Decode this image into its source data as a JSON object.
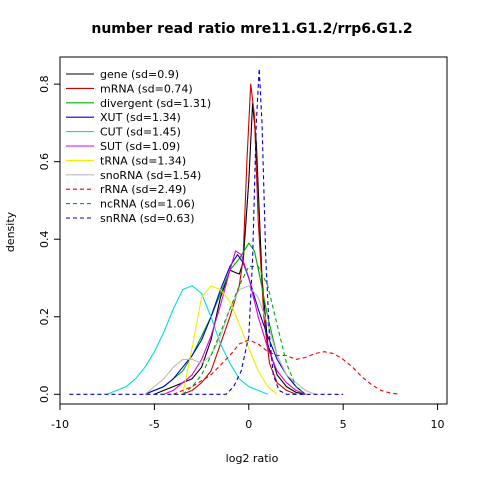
{
  "chart_data": {
    "type": "line",
    "title": "number read ratio mre11.G1.2/rrp6.G1.2",
    "xlabel": "log2 ratio",
    "ylabel": "density",
    "xlim": [
      -10,
      10.5
    ],
    "ylim": [
      -0.025,
      0.87
    ],
    "x_ticks": [
      -10,
      -5,
      0,
      5,
      10
    ],
    "y_ticks": [
      0.0,
      0.2,
      0.4,
      0.6,
      0.8
    ],
    "legend_position": "top-left",
    "grid": false,
    "series": [
      {
        "name": "gene (sd=0.9)",
        "color": "#000000",
        "dash": "solid",
        "points": [
          [
            -5.0,
            0.0
          ],
          [
            -4.5,
            0.01
          ],
          [
            -4.0,
            0.02
          ],
          [
            -3.5,
            0.03
          ],
          [
            -3.0,
            0.04
          ],
          [
            -2.5,
            0.07
          ],
          [
            -2.0,
            0.14
          ],
          [
            -1.5,
            0.25
          ],
          [
            -1.0,
            0.32
          ],
          [
            -0.5,
            0.31
          ],
          [
            -0.3,
            0.34
          ],
          [
            0.0,
            0.55
          ],
          [
            0.2,
            0.75
          ],
          [
            0.4,
            0.65
          ],
          [
            0.7,
            0.3
          ],
          [
            1.0,
            0.13
          ],
          [
            1.5,
            0.05
          ],
          [
            2.0,
            0.02
          ],
          [
            2.5,
            0.005
          ],
          [
            3.0,
            0.0
          ]
        ]
      },
      {
        "name": "mRNA (sd=0.74)",
        "color": "#cc0000",
        "dash": "solid",
        "points": [
          [
            -3.5,
            0.0
          ],
          [
            -3.0,
            0.01
          ],
          [
            -2.5,
            0.03
          ],
          [
            -2.0,
            0.06
          ],
          [
            -1.5,
            0.13
          ],
          [
            -1.0,
            0.2
          ],
          [
            -0.5,
            0.28
          ],
          [
            -0.3,
            0.35
          ],
          [
            -0.1,
            0.6
          ],
          [
            0.1,
            0.8
          ],
          [
            0.3,
            0.72
          ],
          [
            0.5,
            0.45
          ],
          [
            0.8,
            0.2
          ],
          [
            1.1,
            0.08
          ],
          [
            1.5,
            0.03
          ],
          [
            2.0,
            0.01
          ],
          [
            2.5,
            0.0
          ]
        ]
      },
      {
        "name": "divergent (sd=1.31)",
        "color": "#00aa00",
        "dash": "solid",
        "points": [
          [
            -5.5,
            0.0
          ],
          [
            -5.0,
            0.01
          ],
          [
            -4.5,
            0.02
          ],
          [
            -4.0,
            0.04
          ],
          [
            -3.5,
            0.06
          ],
          [
            -3.0,
            0.1
          ],
          [
            -2.5,
            0.15
          ],
          [
            -2.0,
            0.2
          ],
          [
            -1.5,
            0.26
          ],
          [
            -1.0,
            0.32
          ],
          [
            -0.5,
            0.35
          ],
          [
            0.0,
            0.39
          ],
          [
            0.3,
            0.37
          ],
          [
            0.6,
            0.3
          ],
          [
            1.0,
            0.2
          ],
          [
            1.5,
            0.1
          ],
          [
            2.0,
            0.05
          ],
          [
            2.5,
            0.02
          ],
          [
            3.0,
            0.0
          ]
        ]
      },
      {
        "name": "XUT (sd=1.34)",
        "color": "#0000cc",
        "dash": "solid",
        "points": [
          [
            -5.5,
            0.0
          ],
          [
            -5.0,
            0.01
          ],
          [
            -4.5,
            0.02
          ],
          [
            -4.0,
            0.04
          ],
          [
            -3.5,
            0.07
          ],
          [
            -3.0,
            0.1
          ],
          [
            -2.5,
            0.14
          ],
          [
            -2.0,
            0.2
          ],
          [
            -1.5,
            0.27
          ],
          [
            -1.0,
            0.33
          ],
          [
            -0.6,
            0.36
          ],
          [
            -0.3,
            0.34
          ],
          [
            0.0,
            0.3
          ],
          [
            0.5,
            0.22
          ],
          [
            1.0,
            0.15
          ],
          [
            1.5,
            0.09
          ],
          [
            2.0,
            0.05
          ],
          [
            2.5,
            0.02
          ],
          [
            3.0,
            0.0
          ]
        ]
      },
      {
        "name": "CUT (sd=1.45)",
        "color": "#00dddd",
        "dash": "solid",
        "points": [
          [
            -7.5,
            0.0
          ],
          [
            -7.0,
            0.01
          ],
          [
            -6.5,
            0.02
          ],
          [
            -6.0,
            0.04
          ],
          [
            -5.5,
            0.07
          ],
          [
            -5.0,
            0.11
          ],
          [
            -4.5,
            0.16
          ],
          [
            -4.0,
            0.22
          ],
          [
            -3.5,
            0.27
          ],
          [
            -3.0,
            0.28
          ],
          [
            -2.5,
            0.26
          ],
          [
            -2.0,
            0.2
          ],
          [
            -1.5,
            0.13
          ],
          [
            -1.0,
            0.08
          ],
          [
            -0.5,
            0.04
          ],
          [
            0.0,
            0.02
          ],
          [
            0.5,
            0.01
          ],
          [
            1.0,
            0.0
          ]
        ]
      },
      {
        "name": "SUT (sd=1.09)",
        "color": "#dd00dd",
        "dash": "solid",
        "points": [
          [
            -4.5,
            0.0
          ],
          [
            -4.0,
            0.01
          ],
          [
            -3.5,
            0.03
          ],
          [
            -3.0,
            0.05
          ],
          [
            -2.5,
            0.09
          ],
          [
            -2.0,
            0.15
          ],
          [
            -1.5,
            0.23
          ],
          [
            -1.0,
            0.32
          ],
          [
            -0.7,
            0.37
          ],
          [
            -0.4,
            0.36
          ],
          [
            0.0,
            0.3
          ],
          [
            0.5,
            0.2
          ],
          [
            1.0,
            0.12
          ],
          [
            1.5,
            0.06
          ],
          [
            2.0,
            0.03
          ],
          [
            2.5,
            0.01
          ],
          [
            3.0,
            0.0
          ]
        ]
      },
      {
        "name": "tRNA (sd=1.34)",
        "color": "#eeee00",
        "dash": "solid",
        "points": [
          [
            -3.5,
            0.0
          ],
          [
            -3.0,
            0.12
          ],
          [
            -2.5,
            0.25
          ],
          [
            -2.0,
            0.28
          ],
          [
            -1.5,
            0.27
          ],
          [
            -1.0,
            0.24
          ],
          [
            -0.5,
            0.18
          ],
          [
            0.0,
            0.12
          ],
          [
            0.5,
            0.06
          ],
          [
            1.0,
            0.02
          ],
          [
            1.5,
            0.0
          ]
        ]
      },
      {
        "name": "snoRNA (sd=1.54)",
        "color": "#bbbbbb",
        "dash": "solid",
        "points": [
          [
            -5.5,
            0.0
          ],
          [
            -5.0,
            0.02
          ],
          [
            -4.5,
            0.04
          ],
          [
            -4.0,
            0.07
          ],
          [
            -3.5,
            0.09
          ],
          [
            -3.0,
            0.09
          ],
          [
            -2.5,
            0.08
          ],
          [
            -2.0,
            0.1
          ],
          [
            -1.5,
            0.15
          ],
          [
            -1.0,
            0.22
          ],
          [
            -0.5,
            0.27
          ],
          [
            0.0,
            0.28
          ],
          [
            0.5,
            0.25
          ],
          [
            1.0,
            0.18
          ],
          [
            1.5,
            0.1
          ],
          [
            2.0,
            0.05
          ],
          [
            2.5,
            0.03
          ],
          [
            3.0,
            0.01
          ],
          [
            3.5,
            0.0
          ]
        ]
      },
      {
        "name": "rRNA (sd=2.49)",
        "color": "#ee0000",
        "dash": "dashed",
        "points": [
          [
            -4.0,
            0.0
          ],
          [
            -3.0,
            0.02
          ],
          [
            -2.0,
            0.05
          ],
          [
            -1.0,
            0.1
          ],
          [
            -0.5,
            0.13
          ],
          [
            0.0,
            0.14
          ],
          [
            0.5,
            0.13
          ],
          [
            1.0,
            0.11
          ],
          [
            1.5,
            0.1
          ],
          [
            2.0,
            0.1
          ],
          [
            2.5,
            0.09
          ],
          [
            3.0,
            0.095
          ],
          [
            3.5,
            0.105
          ],
          [
            4.0,
            0.11
          ],
          [
            4.5,
            0.105
          ],
          [
            5.0,
            0.09
          ],
          [
            5.5,
            0.07
          ],
          [
            6.0,
            0.045
          ],
          [
            6.5,
            0.025
          ],
          [
            7.0,
            0.01
          ],
          [
            7.5,
            0.003
          ],
          [
            8.0,
            0.0
          ]
        ]
      },
      {
        "name": "ncRNA (sd=1.06)",
        "color": "#00aa00",
        "dash": "dashed",
        "points": [
          [
            -3.5,
            0.0
          ],
          [
            -3.0,
            0.02
          ],
          [
            -2.5,
            0.05
          ],
          [
            -2.0,
            0.1
          ],
          [
            -1.5,
            0.16
          ],
          [
            -1.0,
            0.22
          ],
          [
            -0.5,
            0.28
          ],
          [
            0.0,
            0.33
          ],
          [
            0.5,
            0.33
          ],
          [
            1.0,
            0.28
          ],
          [
            1.5,
            0.18
          ],
          [
            2.0,
            0.08
          ],
          [
            2.5,
            0.02
          ],
          [
            3.0,
            0.0
          ]
        ]
      },
      {
        "name": "snRNA (sd=0.63)",
        "color": "#0000cc",
        "dash": "dashed",
        "points": [
          [
            -9.5,
            0.0
          ],
          [
            -1.2,
            0.0
          ],
          [
            -0.8,
            0.02
          ],
          [
            -0.4,
            0.06
          ],
          [
            0.0,
            0.15
          ],
          [
            0.2,
            0.35
          ],
          [
            0.4,
            0.7
          ],
          [
            0.55,
            0.84
          ],
          [
            0.7,
            0.7
          ],
          [
            0.9,
            0.35
          ],
          [
            1.1,
            0.15
          ],
          [
            1.3,
            0.05
          ],
          [
            1.6,
            0.01
          ],
          [
            2.0,
            0.0
          ],
          [
            5.0,
            0.0
          ]
        ]
      }
    ]
  }
}
